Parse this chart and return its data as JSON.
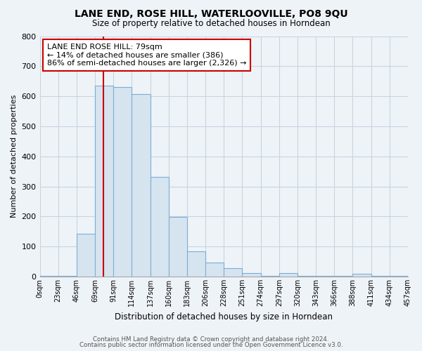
{
  "title": "LANE END, ROSE HILL, WATERLOOVILLE, PO8 9QU",
  "subtitle": "Size of property relative to detached houses in Horndean",
  "xlabel": "Distribution of detached houses by size in Horndean",
  "ylabel": "Number of detached properties",
  "footer_line1": "Contains HM Land Registry data © Crown copyright and database right 2024.",
  "footer_line2": "Contains public sector information licensed under the Open Government Licence v3.0.",
  "bin_labels": [
    "0sqm",
    "23sqm",
    "46sqm",
    "69sqm",
    "91sqm",
    "114sqm",
    "137sqm",
    "160sqm",
    "183sqm",
    "206sqm",
    "228sqm",
    "251sqm",
    "274sqm",
    "297sqm",
    "320sqm",
    "343sqm",
    "366sqm",
    "388sqm",
    "411sqm",
    "434sqm",
    "457sqm"
  ],
  "bar_heights": [
    2,
    2,
    143,
    636,
    630,
    608,
    331,
    198,
    83,
    47,
    27,
    12,
    3,
    12,
    3,
    3,
    3,
    10,
    3,
    3,
    10
  ],
  "bar_color": "#d6e4f0",
  "bar_edge_color": "#7baed4",
  "vline_color": "#cc0000",
  "vline_position": 3.45,
  "ylim": [
    0,
    800
  ],
  "yticks": [
    0,
    100,
    200,
    300,
    400,
    500,
    600,
    700,
    800
  ],
  "annotation_title": "LANE END ROSE HILL: 79sqm",
  "annotation_line1": "← 14% of detached houses are smaller (386)",
  "annotation_line2": "86% of semi-detached houses are larger (2,326) →",
  "grid_color": "#c8d4e0",
  "background_color": "#eef3f8",
  "spine_color": "#aaaaaa"
}
